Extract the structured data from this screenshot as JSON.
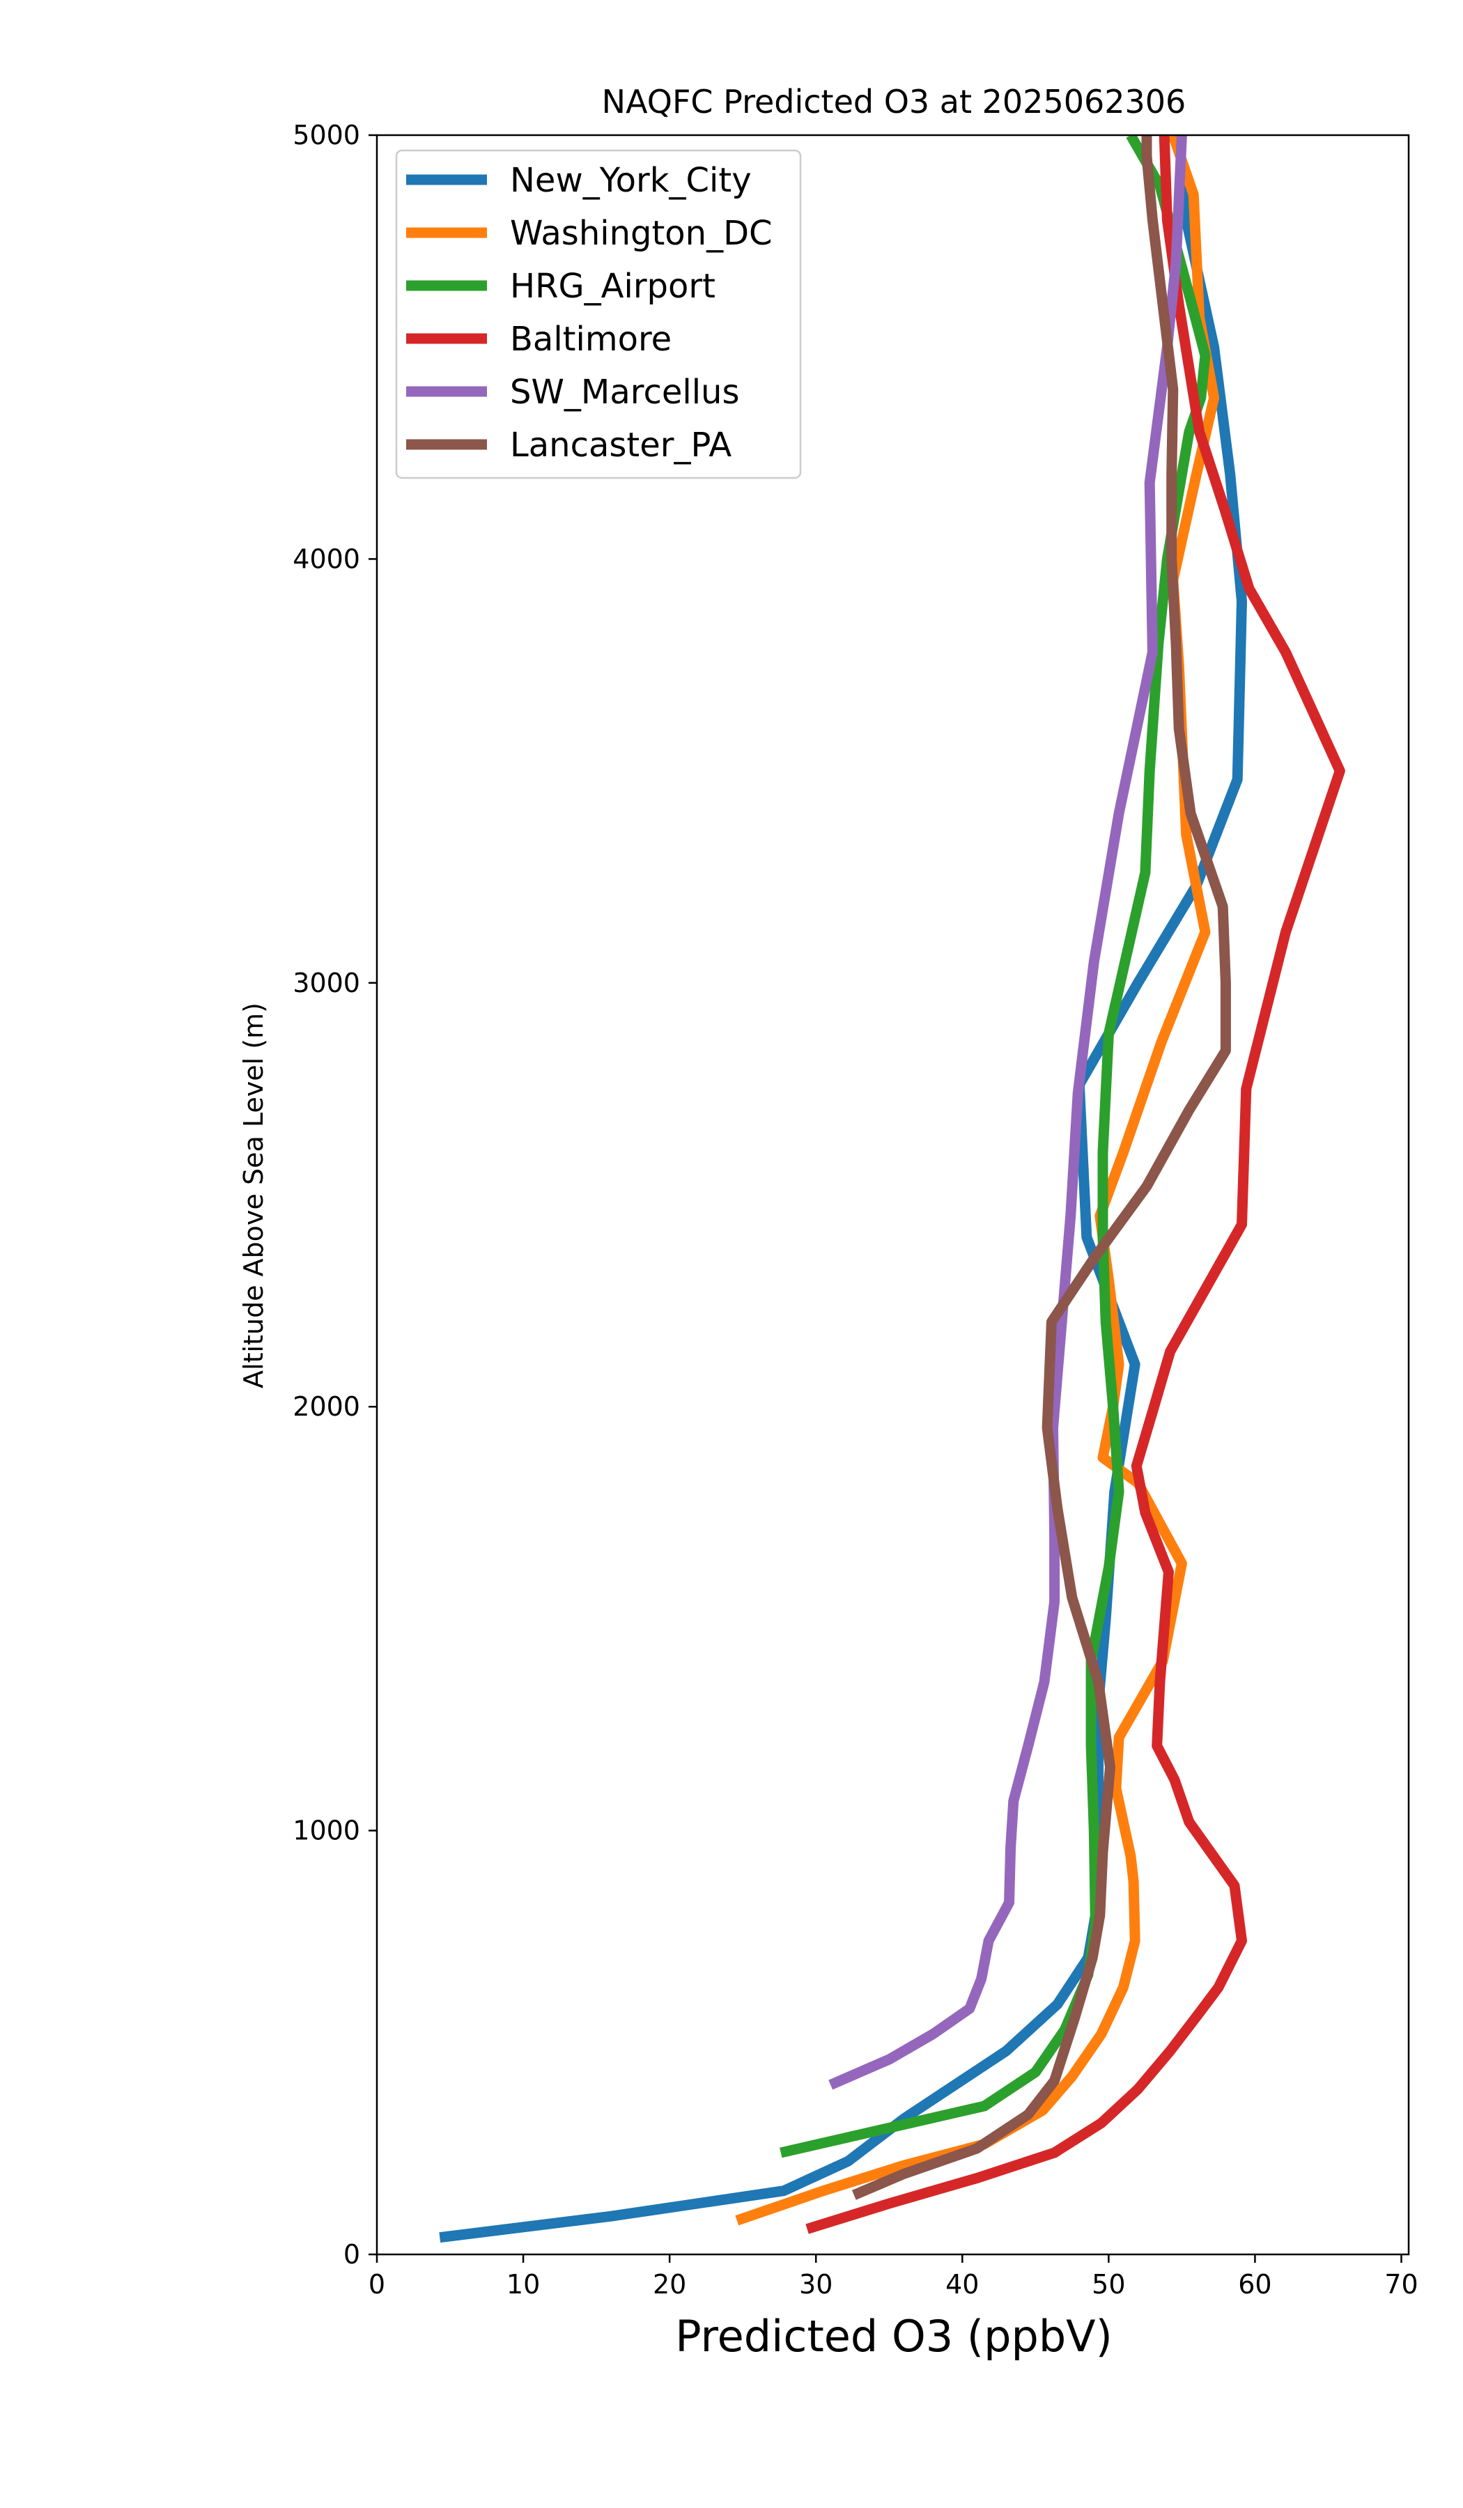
{
  "chart_data": {
    "type": "line",
    "title": "NAQFC Predicted O3 at 2025062306",
    "xlabel": "Predicted O3 (ppbV)",
    "ylabel": "Altitude Above Sea Level (m)",
    "xlim": [
      0,
      70.5
    ],
    "ylim": [
      0,
      5000
    ],
    "xticks": [
      0,
      10,
      20,
      30,
      40,
      50,
      60,
      70
    ],
    "yticks": [
      0,
      1000,
      2000,
      3000,
      4000,
      5000
    ],
    "grid": false,
    "legend_position": "top-left",
    "series": [
      {
        "name": "New_York_City",
        "color": "#1f77b4",
        "points": [
          [
            4.3,
            40
          ],
          [
            16,
            90
          ],
          [
            27.8,
            150
          ],
          [
            32.2,
            220
          ],
          [
            36,
            320
          ],
          [
            43,
            480
          ],
          [
            46.5,
            590
          ],
          [
            48.6,
            700
          ],
          [
            49.3,
            840
          ],
          [
            49.3,
            1000
          ],
          [
            49.3,
            1300
          ],
          [
            49.8,
            1500
          ],
          [
            50.4,
            1800
          ],
          [
            51.8,
            2100
          ],
          [
            48.5,
            2400
          ],
          [
            48,
            2760
          ],
          [
            52,
            3000
          ],
          [
            56,
            3230
          ],
          [
            58.8,
            3480
          ],
          [
            59.1,
            3900
          ],
          [
            58.3,
            4200
          ],
          [
            57.2,
            4500
          ],
          [
            55.3,
            4800
          ],
          [
            54.8,
            5000
          ]
        ]
      },
      {
        "name": "Washington_DC",
        "color": "#ff7f0e",
        "points": [
          [
            24.6,
            80
          ],
          [
            30.5,
            150
          ],
          [
            36,
            210
          ],
          [
            41.5,
            260
          ],
          [
            45.5,
            340
          ],
          [
            47.5,
            420
          ],
          [
            49.5,
            520
          ],
          [
            51,
            630
          ],
          [
            51.8,
            740
          ],
          [
            51.7,
            880
          ],
          [
            51.5,
            940
          ],
          [
            50.5,
            1100
          ],
          [
            50.7,
            1220
          ],
          [
            53.7,
            1400
          ],
          [
            55,
            1630
          ],
          [
            52,
            1820
          ],
          [
            49.6,
            1880
          ],
          [
            50.3,
            2000
          ],
          [
            50.7,
            2100
          ],
          [
            50,
            2300
          ],
          [
            49.4,
            2450
          ],
          [
            51,
            2600
          ],
          [
            53.6,
            2860
          ],
          [
            56.6,
            3120
          ],
          [
            55.3,
            3350
          ],
          [
            54.8,
            3750
          ],
          [
            54.4,
            3950
          ],
          [
            56,
            4200
          ],
          [
            57.2,
            4380
          ],
          [
            56.2,
            4570
          ],
          [
            55.8,
            4860
          ],
          [
            54.4,
            5000
          ]
        ]
      },
      {
        "name": "HRG_Airport",
        "color": "#2ca02c",
        "points": [
          [
            27.6,
            240
          ],
          [
            41.5,
            350
          ],
          [
            45,
            430
          ],
          [
            47,
            530
          ],
          [
            48.6,
            660
          ],
          [
            49.1,
            780
          ],
          [
            49,
            1000
          ],
          [
            48.8,
            1200
          ],
          [
            48.8,
            1400
          ],
          [
            50,
            1620
          ],
          [
            50.7,
            1800
          ],
          [
            50.3,
            2000
          ],
          [
            49.8,
            2200
          ],
          [
            49.6,
            2400
          ],
          [
            49.6,
            2600
          ],
          [
            50,
            2880
          ],
          [
            52.5,
            3260
          ],
          [
            52.8,
            3500
          ],
          [
            53.4,
            3800
          ],
          [
            54,
            4000
          ],
          [
            55.5,
            4300
          ],
          [
            56.3,
            4380
          ],
          [
            56.6,
            4480
          ],
          [
            55.3,
            4650
          ],
          [
            53.5,
            4880
          ],
          [
            51.5,
            5000
          ]
        ]
      },
      {
        "name": "Baltimore",
        "color": "#d62728",
        "points": [
          [
            29.4,
            60
          ],
          [
            35,
            120
          ],
          [
            41,
            180
          ],
          [
            46.3,
            240
          ],
          [
            49.5,
            310
          ],
          [
            52,
            390
          ],
          [
            54.2,
            480
          ],
          [
            56.2,
            570
          ],
          [
            57.5,
            630
          ],
          [
            59.1,
            740
          ],
          [
            58.6,
            870
          ],
          [
            55.5,
            1020
          ],
          [
            54.5,
            1120
          ],
          [
            53.3,
            1200
          ],
          [
            53.5,
            1350
          ],
          [
            53.8,
            1480
          ],
          [
            54.1,
            1610
          ],
          [
            52.5,
            1750
          ],
          [
            51.9,
            1860
          ],
          [
            53.1,
            2000
          ],
          [
            54.2,
            2130
          ],
          [
            59.1,
            2430
          ],
          [
            59.4,
            2750
          ],
          [
            62.1,
            3120
          ],
          [
            65.8,
            3500
          ],
          [
            62.1,
            3780
          ],
          [
            59.6,
            3930
          ],
          [
            57.9,
            4120
          ],
          [
            56.2,
            4300
          ],
          [
            54.8,
            4600
          ],
          [
            54,
            4800
          ],
          [
            53.8,
            5000
          ]
        ]
      },
      {
        "name": "SW_Marcellus",
        "color": "#9467bd",
        "points": [
          [
            31,
            400
          ],
          [
            35,
            460
          ],
          [
            38,
            520
          ],
          [
            40.5,
            580
          ],
          [
            41.3,
            650
          ],
          [
            41.8,
            740
          ],
          [
            43.2,
            830
          ],
          [
            43.3,
            960
          ],
          [
            43.5,
            1070
          ],
          [
            44.5,
            1200
          ],
          [
            45.6,
            1350
          ],
          [
            46.3,
            1540
          ],
          [
            46.3,
            1700
          ],
          [
            46.2,
            1950
          ],
          [
            46.8,
            2200
          ],
          [
            47.4,
            2450
          ],
          [
            47.9,
            2740
          ],
          [
            49,
            3050
          ],
          [
            50.7,
            3400
          ],
          [
            53,
            3780
          ],
          [
            52.8,
            4180
          ],
          [
            54,
            4500
          ],
          [
            54.6,
            4700
          ],
          [
            54.8,
            4850
          ],
          [
            55,
            5000
          ]
        ]
      },
      {
        "name": "Lancaster_PA",
        "color": "#8c564b",
        "points": [
          [
            32.6,
            140
          ],
          [
            36,
            190
          ],
          [
            41,
            250
          ],
          [
            44.5,
            330
          ],
          [
            46.3,
            410
          ],
          [
            47.7,
            560
          ],
          [
            48.9,
            700
          ],
          [
            49.4,
            800
          ],
          [
            49.6,
            950
          ],
          [
            50.1,
            1150
          ],
          [
            49.3,
            1350
          ],
          [
            47.5,
            1550
          ],
          [
            46.5,
            1760
          ],
          [
            45.8,
            1950
          ],
          [
            46.1,
            2200
          ],
          [
            49,
            2350
          ],
          [
            52.6,
            2520
          ],
          [
            55.5,
            2700
          ],
          [
            58,
            2840
          ],
          [
            58,
            3000
          ],
          [
            57.8,
            3180
          ],
          [
            55.6,
            3400
          ],
          [
            54.8,
            3600
          ],
          [
            54.6,
            3800
          ],
          [
            54.3,
            4000
          ],
          [
            54.3,
            4200
          ],
          [
            54.4,
            4400
          ],
          [
            53.7,
            4600
          ],
          [
            53,
            4800
          ],
          [
            52.6,
            4950
          ],
          [
            52.6,
            5000
          ]
        ]
      }
    ]
  }
}
